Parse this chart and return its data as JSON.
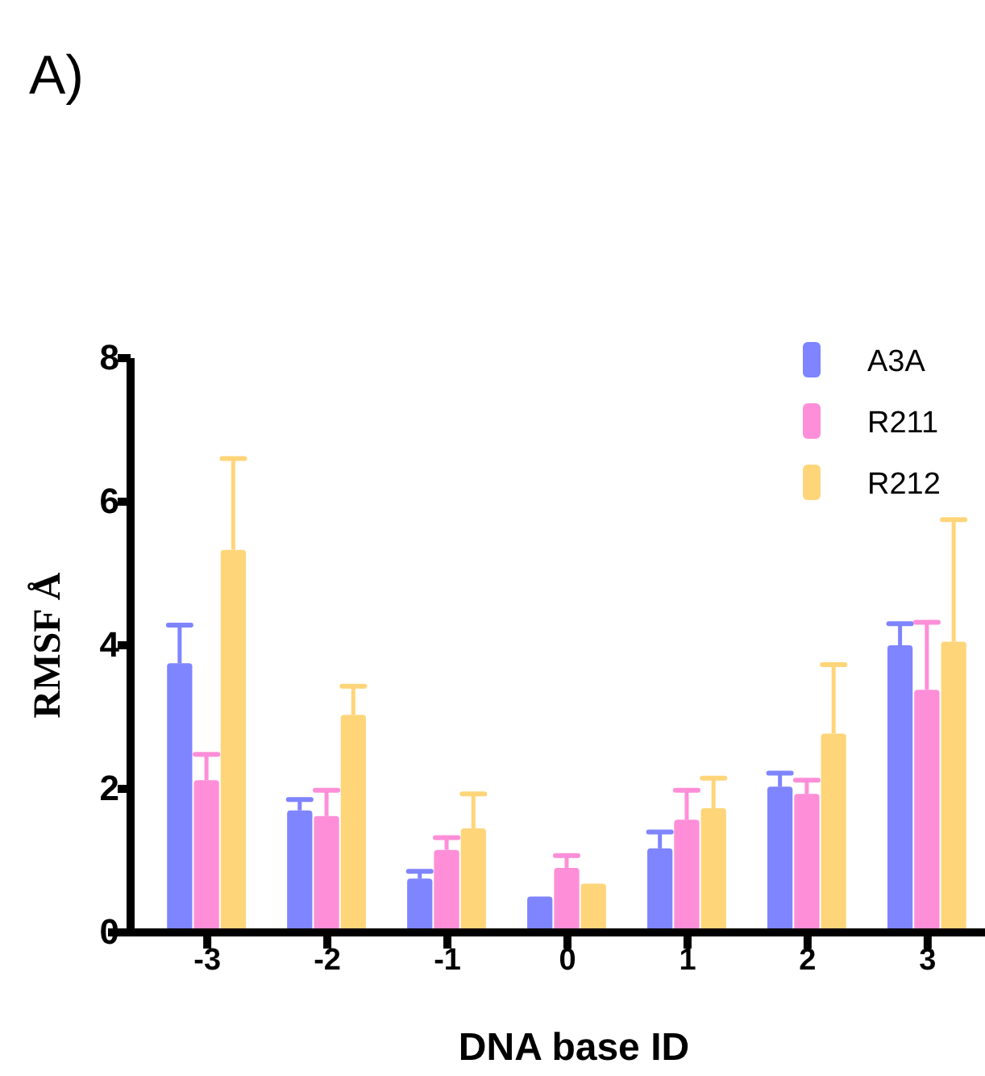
{
  "chart_data": {
    "type": "bar",
    "title": "A)",
    "xlabel": "DNA base ID",
    "ylabel": "RMSF Å",
    "categories": [
      "-3",
      "-2",
      "-1",
      "0",
      "1",
      "2",
      "3"
    ],
    "series": [
      {
        "name": "A3A",
        "color": "#7f84ff",
        "values": [
          3.75,
          1.7,
          0.75,
          0.5,
          1.17,
          2.03,
          4.0
        ],
        "errors": [
          [
            3.75,
            4.28
          ],
          [
            1.7,
            1.85
          ],
          [
            0.75,
            0.85
          ],
          null,
          [
            1.17,
            1.4
          ],
          [
            2.03,
            2.22
          ],
          [
            4.0,
            4.3
          ]
        ]
      },
      {
        "name": "R211",
        "color": "#ff8ed8",
        "values": [
          2.12,
          1.62,
          1.15,
          0.9,
          1.57,
          1.93,
          3.38
        ],
        "errors": [
          [
            2.12,
            2.48
          ],
          [
            1.62,
            1.98
          ],
          [
            1.15,
            1.32
          ],
          [
            0.9,
            1.07
          ],
          [
            1.57,
            1.98
          ],
          [
            1.93,
            2.12
          ],
          [
            3.38,
            4.32
          ]
        ]
      },
      {
        "name": "R212",
        "color": "#ffd57a",
        "values": [
          5.33,
          3.03,
          1.45,
          0.68,
          1.73,
          2.77,
          4.05
        ],
        "errors": [
          [
            5.33,
            6.6
          ],
          [
            3.03,
            3.43
          ],
          [
            1.45,
            1.93
          ],
          null,
          [
            1.73,
            2.15
          ],
          [
            2.77,
            3.73
          ],
          [
            4.05,
            5.75
          ]
        ]
      }
    ],
    "ylim": [
      0,
      8
    ],
    "yticks": [
      0,
      2,
      4,
      6,
      8
    ],
    "grid": false,
    "legend": "top right"
  }
}
